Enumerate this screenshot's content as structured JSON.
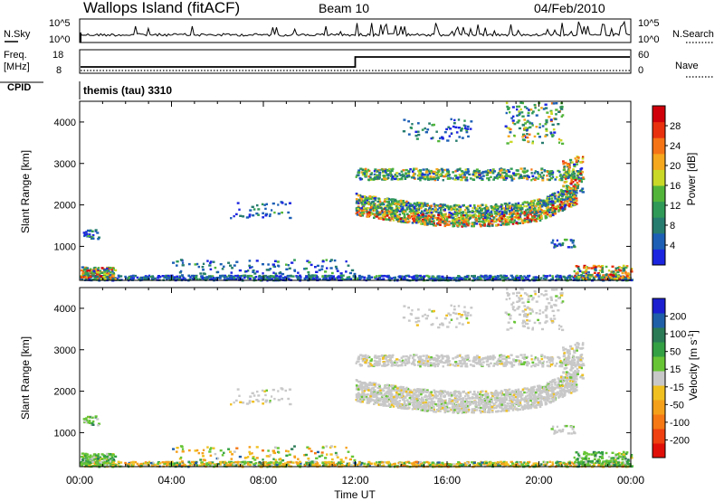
{
  "header": {
    "station": "Wallops Island (fitACF)",
    "beam": "Beam 10",
    "date": "04/Feb/2010"
  },
  "noise_panel": {
    "left_label": "N.Sky",
    "left_ticks": [
      "10^5",
      "10^0"
    ],
    "right_ticks": [
      "10^5",
      "10^0"
    ],
    "right_label": "N.Search"
  },
  "freq_panel": {
    "left_label_1": "Freq.",
    "left_label_2": "[MHz]",
    "left_ticks": [
      "18",
      "8"
    ],
    "right_ticks": [
      "60",
      "0"
    ],
    "right_label": "Nave",
    "step_hour": 12
  },
  "cpid": {
    "label": "CPID",
    "value": "themis (tau) 3310"
  },
  "chart_data": [
    {
      "type": "heatmap",
      "name": "power",
      "ylabel": "Slant Range [km]",
      "xlabel": "Time UT",
      "xlim": [
        0,
        24
      ],
      "ylim": [
        180,
        4500
      ],
      "x_ticks": [
        "00:00",
        "04:00",
        "08:00",
        "12:00",
        "16:00",
        "20:00",
        "00:00"
      ],
      "y_ticks": [
        1000,
        2000,
        3000,
        4000
      ],
      "colorbar": {
        "label": "Power [dB]",
        "ticks": [
          4,
          8,
          12,
          16,
          20,
          24,
          28
        ],
        "colors": [
          "#1b25e0",
          "#1c5fb5",
          "#267c6e",
          "#2f9a57",
          "#52b53a",
          "#c9d827",
          "#f5a71d",
          "#f57416",
          "#e8300e",
          "#d0000a"
        ]
      },
      "features": [
        {
          "desc": "near-range ground scatter",
          "time_start": 0,
          "time_end": 24,
          "range": [
            200,
            500
          ]
        },
        {
          "desc": "early patch",
          "time_start": 0.1,
          "time_end": 0.8,
          "range": [
            1200,
            1450
          ]
        },
        {
          "desc": "mid-range echoes",
          "time_start": 6.5,
          "time_end": 9.2,
          "range": [
            1700,
            2100
          ]
        },
        {
          "desc": "main ionospheric scatter band",
          "time_start": 12,
          "time_end": 21.6,
          "range": [
            1700,
            2500
          ]
        },
        {
          "desc": "upper band",
          "time_start": 12,
          "time_end": 21.8,
          "range": [
            2600,
            2900
          ]
        },
        {
          "desc": "far-range echoes",
          "time_start": 14,
          "time_end": 21,
          "range": [
            3500,
            4500
          ]
        }
      ]
    },
    {
      "type": "heatmap",
      "name": "velocity",
      "ylabel": "Slant Range [km]",
      "xlabel": "Time UT",
      "xlim": [
        0,
        24
      ],
      "ylim": [
        180,
        4500
      ],
      "x_ticks": [
        "00:00",
        "04:00",
        "08:00",
        "12:00",
        "16:00",
        "20:00",
        "00:00"
      ],
      "y_ticks": [
        1000,
        2000,
        3000,
        4000
      ],
      "colorbar": {
        "label": "Velocity [m s^-1]",
        "ticks": [
          "200",
          "100",
          "50",
          "15",
          "-15",
          "-50",
          "-100",
          "-200"
        ],
        "colors": [
          "#1b1fd0",
          "#1f5fa8",
          "#2a7a55",
          "#33a043",
          "#67c535",
          "#c8c8c8",
          "#f0c020",
          "#f5a01a",
          "#f57814",
          "#ee4010",
          "#e01008"
        ]
      },
      "features": [
        {
          "desc": "near-range green/orange scatter",
          "time_start": 0,
          "time_end": 24,
          "range": [
            200,
            500
          ]
        },
        {
          "desc": "grey ground scatter band",
          "time_start": 12,
          "time_end": 21.6,
          "range": [
            1700,
            2500
          ]
        },
        {
          "desc": "grey upper band",
          "time_start": 12,
          "time_end": 21.8,
          "range": [
            2600,
            2900
          ]
        }
      ]
    }
  ]
}
